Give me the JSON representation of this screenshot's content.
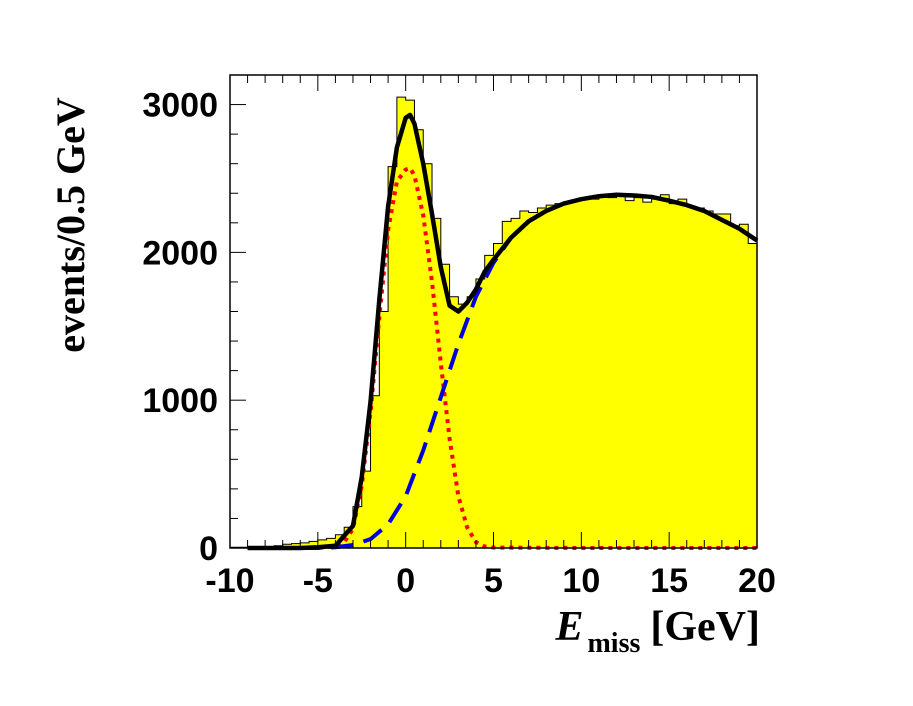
{
  "chart_data": {
    "type": "histogram",
    "ylabel": "events/0.5 GeV",
    "xlabel_main": "E",
    "xlabel_sub": "miss",
    "xlabel_unit": "[GeV]",
    "xlim": [
      -10,
      20
    ],
    "ylim": [
      0,
      3200
    ],
    "x_ticks": [
      -10,
      -5,
      0,
      5,
      10,
      15,
      20
    ],
    "y_ticks": [
      0,
      1000,
      2000,
      3000
    ],
    "bin_width": 0.5,
    "histogram_bins_low_edges": [
      -10,
      -9.5,
      -9,
      -8.5,
      -8,
      -7.5,
      -7,
      -6.5,
      -6,
      -5.5,
      -5,
      -4.5,
      -4,
      -3.5,
      -3,
      -2.5,
      -2,
      -1.5,
      -1,
      -0.5,
      0,
      0.5,
      1,
      1.5,
      2,
      2.5,
      3,
      3.5,
      4,
      4.5,
      5,
      5.5,
      6,
      6.5,
      7,
      7.5,
      8,
      8.5,
      9,
      9.5,
      10,
      10.5,
      11,
      11.5,
      12,
      12.5,
      13,
      13.5,
      14,
      14.5,
      15,
      15.5,
      16,
      16.5,
      17,
      17.5,
      18,
      18.5,
      19,
      19.5
    ],
    "histogram_values": [
      5,
      5,
      5,
      8,
      10,
      15,
      25,
      30,
      35,
      45,
      55,
      65,
      90,
      140,
      280,
      520,
      1030,
      1600,
      2580,
      3050,
      3030,
      2830,
      2600,
      2230,
      1920,
      1700,
      1650,
      1700,
      1820,
      1980,
      2060,
      2210,
      2230,
      2280,
      2270,
      2300,
      2320,
      2330,
      2340,
      2350,
      2370,
      2360,
      2380,
      2370,
      2390,
      2350,
      2370,
      2340,
      2360,
      2390,
      2330,
      2360,
      2310,
      2300,
      2280,
      2260,
      2260,
      2180,
      2190,
      2060
    ],
    "histogram_fill": "#ffff00",
    "curves": [
      {
        "style": "dotted",
        "color": "#ff0000",
        "x": [
          -9,
          -6,
          -5,
          -4.5,
          -4,
          -3.5,
          -3,
          -2.5,
          -2,
          -1.5,
          -1,
          -0.5,
          0,
          0.25,
          0.5,
          1,
          1.5,
          2,
          2.5,
          3,
          3.5,
          4,
          4.5,
          5,
          10,
          20
        ],
        "y": [
          0,
          0,
          0,
          5,
          10,
          40,
          130,
          420,
          920,
          1560,
          2150,
          2480,
          2560,
          2570,
          2520,
          2250,
          1800,
          1250,
          740,
          350,
          140,
          40,
          10,
          3,
          0,
          0
        ]
      },
      {
        "style": "dashed",
        "color": "#0000dd",
        "x": [
          -8,
          -5,
          -4,
          -3,
          -2,
          -1,
          0,
          1,
          2,
          3,
          4,
          5,
          6,
          7,
          8,
          9,
          10,
          11,
          12,
          13,
          14,
          15,
          16,
          17,
          18,
          19,
          20
        ],
        "y": [
          0,
          0,
          5,
          20,
          60,
          160,
          350,
          660,
          1020,
          1380,
          1700,
          1930,
          2100,
          2210,
          2280,
          2330,
          2360,
          2380,
          2390,
          2385,
          2375,
          2350,
          2320,
          2280,
          2220,
          2160,
          2080
        ]
      },
      {
        "style": "solid",
        "color": "#000000",
        "x": [
          -9,
          -6,
          -5,
          -4,
          -3,
          -2.5,
          -2,
          -1.5,
          -1,
          -0.5,
          0,
          0.25,
          0.5,
          1,
          1.5,
          2,
          2.5,
          3,
          3.5,
          4,
          4.5,
          5,
          6,
          7,
          8,
          9,
          10,
          11,
          12,
          13,
          14,
          15,
          16,
          17,
          18,
          19,
          20
        ],
        "y": [
          0,
          0,
          5,
          15,
          150,
          480,
          990,
          1680,
          2310,
          2710,
          2910,
          2930,
          2870,
          2600,
          2260,
          1900,
          1640,
          1600,
          1660,
          1750,
          1870,
          1950,
          2100,
          2210,
          2280,
          2330,
          2360,
          2380,
          2390,
          2385,
          2375,
          2350,
          2320,
          2280,
          2220,
          2160,
          2080
        ]
      }
    ]
  }
}
